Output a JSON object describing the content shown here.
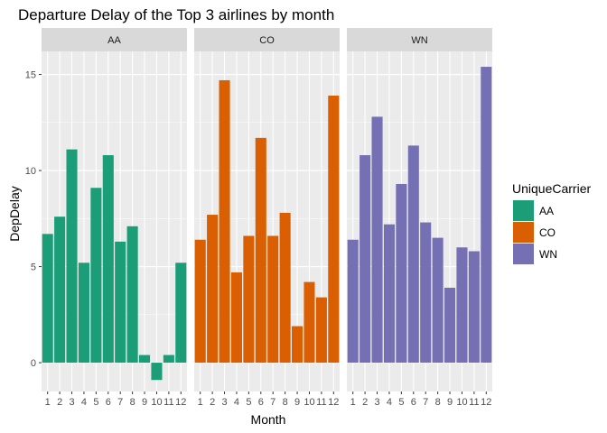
{
  "chart_data": {
    "type": "bar",
    "title": "Departure Delay of the Top 3 airlines by month",
    "xlabel": "Month",
    "ylabel": "DepDelay",
    "categories": [
      "1",
      "2",
      "3",
      "4",
      "5",
      "6",
      "7",
      "8",
      "9",
      "10",
      "11",
      "12"
    ],
    "ylim": [
      -1.5,
      16.2
    ],
    "yticks": [
      0,
      5,
      10,
      15
    ],
    "grid": true,
    "legend": {
      "title": "UniqueCarrier",
      "placement": "right",
      "entries": [
        "AA",
        "CO",
        "WN"
      ]
    },
    "facets": [
      {
        "name": "AA",
        "color": "#1B9E77",
        "values": [
          6.7,
          7.6,
          11.1,
          5.2,
          9.1,
          10.8,
          6.3,
          7.1,
          0.4,
          -0.9,
          0.4,
          5.2
        ]
      },
      {
        "name": "CO",
        "color": "#D95F02",
        "values": [
          6.4,
          7.7,
          14.7,
          4.7,
          6.6,
          11.7,
          6.6,
          7.8,
          1.9,
          4.2,
          3.4,
          13.9
        ]
      },
      {
        "name": "WN",
        "color": "#7570B3",
        "values": [
          6.4,
          10.8,
          12.8,
          7.2,
          9.3,
          11.3,
          7.3,
          6.5,
          3.9,
          6.0,
          5.8,
          15.4
        ]
      }
    ]
  }
}
